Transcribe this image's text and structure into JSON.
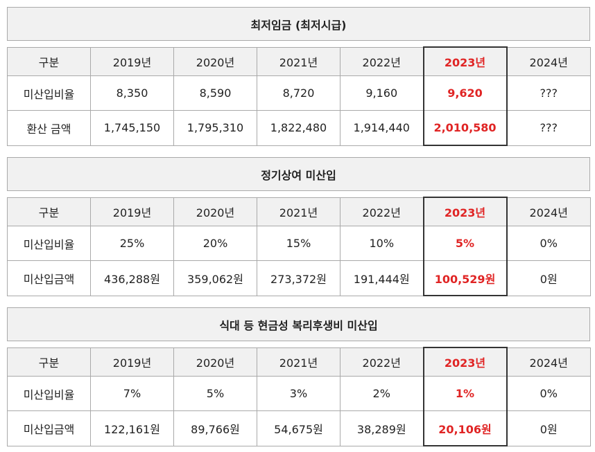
{
  "sections": [
    {
      "title": "최저임금 (최저시급)",
      "header": [
        "구분",
        "2019년",
        "2020년",
        "2021년",
        "2022년",
        "2023년",
        "2024년"
      ],
      "rows": [
        [
          "미산입비율",
          "8,350",
          "8,590",
          "8,720",
          "9,160",
          "9,620",
          "???"
        ],
        [
          "환산 금액",
          "1,745,150",
          "1,795,310",
          "1,822,480",
          "1,914,440",
          "2,010,580",
          "???"
        ]
      ]
    },
    {
      "title": "정기상여 미산입",
      "header": [
        "구분",
        "2019년",
        "2020년",
        "2021년",
        "2022년",
        "2023년",
        "2024년"
      ],
      "rows": [
        [
          "미산입비율",
          "25%",
          "20%",
          "15%",
          "10%",
          "5%",
          "0%"
        ],
        [
          "미산입금액",
          "436,288원",
          "359,062원",
          "273,372원",
          "191,444원",
          "100,529원",
          "0원"
        ]
      ]
    },
    {
      "title": "식대 등 현금성 복리후생비 미산입",
      "header": [
        "구분",
        "2019년",
        "2020년",
        "2021년",
        "2022년",
        "2023년",
        "2024년"
      ],
      "rows": [
        [
          "미산입비율",
          "7%",
          "5%",
          "3%",
          "2%",
          "1%",
          "0%"
        ],
        [
          "미산입금액",
          "122,161원",
          "89,766원",
          "54,675원",
          "38,289원",
          "20,106원",
          "0원"
        ]
      ]
    }
  ],
  "highlight_column": 5,
  "colors": {
    "highlight_text": "#e02424",
    "header_bg": "#f1f1f1",
    "border": "#a9a9a9",
    "highlight_border": "#333333"
  }
}
